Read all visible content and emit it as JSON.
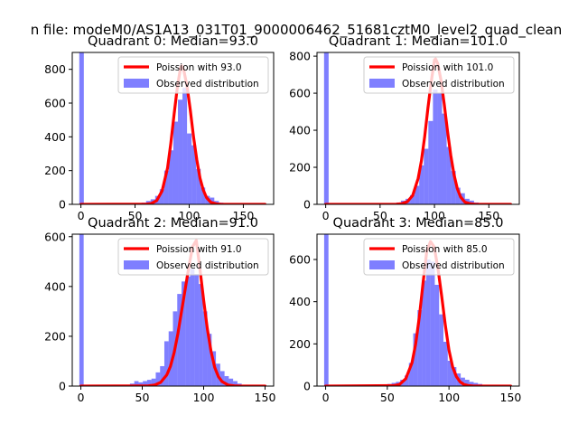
{
  "figure": {
    "suptitle": "n file: modeM0/AS1A13_031T01_9000006462_51681cztM0_level2_quad_clean"
  },
  "colors": {
    "poisson": "#ff0000",
    "observed": "#0000ff",
    "axis": "#000000",
    "background": "#ffffff"
  },
  "chart_data": [
    {
      "type": "bar",
      "title": "Quadrant 0: Median=93.0",
      "xlim": [
        -8,
        178
      ],
      "ylim": [
        0,
        900
      ],
      "xticks": [
        0,
        50,
        100,
        150
      ],
      "yticks": [
        0,
        200,
        400,
        600,
        800
      ],
      "legend": {
        "placement": "top-right",
        "entries": [
          "Poission with 93.0",
          "Observed distribution"
        ]
      },
      "series": [
        {
          "name": "Poission with 93.0",
          "type": "line",
          "mean": 93.0,
          "x": [
            0,
            60,
            65,
            70,
            75,
            80,
            83,
            86,
            89,
            92,
            93,
            95,
            98,
            101,
            104,
            107,
            110,
            113,
            116,
            120,
            125,
            130,
            135,
            140,
            150,
            170
          ],
          "y": [
            0,
            1,
            5,
            22,
            80,
            215,
            360,
            530,
            690,
            810,
            820,
            795,
            700,
            560,
            400,
            265,
            155,
            85,
            40,
            12,
            3,
            0,
            0,
            0,
            0,
            0
          ]
        },
        {
          "name": "Observed distribution",
          "type": "histogram",
          "bin_width": 4.2,
          "bins": [
            {
              "x0": -1.5,
              "count": 900
            },
            {
              "x0": 56,
              "count": 10
            },
            {
              "x0": 60.2,
              "count": 20
            },
            {
              "x0": 64.4,
              "count": 30
            },
            {
              "x0": 68.6,
              "count": 50
            },
            {
              "x0": 72.8,
              "count": 90
            },
            {
              "x0": 77,
              "count": 200
            },
            {
              "x0": 81.2,
              "count": 320
            },
            {
              "x0": 85.4,
              "count": 490
            },
            {
              "x0": 89.6,
              "count": 620
            },
            {
              "x0": 93.8,
              "count": 690
            },
            {
              "x0": 98,
              "count": 420
            },
            {
              "x0": 102.2,
              "count": 350
            },
            {
              "x0": 106.4,
              "count": 210
            },
            {
              "x0": 110.6,
              "count": 100
            },
            {
              "x0": 114.8,
              "count": 50
            },
            {
              "x0": 119,
              "count": 40
            },
            {
              "x0": 123.2,
              "count": 20
            },
            {
              "x0": 127.4,
              "count": 10
            }
          ]
        }
      ]
    },
    {
      "type": "bar",
      "title": "Quadrant 1: Median=101.0",
      "xlim": [
        -8,
        178
      ],
      "ylim": [
        0,
        820
      ],
      "xticks": [
        0,
        50,
        100,
        150
      ],
      "yticks": [
        0,
        200,
        400,
        600,
        800
      ],
      "legend": {
        "placement": "top-right",
        "entries": [
          "Poission with 101.0",
          "Observed distribution"
        ]
      },
      "series": [
        {
          "name": "Poission with 101.0",
          "type": "line",
          "mean": 101.0,
          "x": [
            0,
            65,
            70,
            75,
            80,
            85,
            88,
            91,
            94,
            97,
            100,
            101,
            103,
            106,
            109,
            112,
            115,
            118,
            121,
            124,
            128,
            133,
            138,
            145,
            155,
            170
          ],
          "y": [
            0,
            1,
            4,
            14,
            48,
            140,
            235,
            365,
            520,
            660,
            780,
            785,
            760,
            670,
            540,
            395,
            265,
            160,
            85,
            40,
            12,
            3,
            0,
            0,
            0,
            0
          ]
        },
        {
          "name": "Observed distribution",
          "type": "histogram",
          "bin_width": 4.2,
          "bins": [
            {
              "x0": -1.5,
              "count": 820
            },
            {
              "x0": 65,
              "count": 10
            },
            {
              "x0": 69.2,
              "count": 20
            },
            {
              "x0": 73.4,
              "count": 30
            },
            {
              "x0": 77.6,
              "count": 50
            },
            {
              "x0": 81.8,
              "count": 100
            },
            {
              "x0": 86,
              "count": 210
            },
            {
              "x0": 90.2,
              "count": 300
            },
            {
              "x0": 94.4,
              "count": 450
            },
            {
              "x0": 98.6,
              "count": 620
            },
            {
              "x0": 102.8,
              "count": 600
            },
            {
              "x0": 107,
              "count": 490
            },
            {
              "x0": 111.2,
              "count": 310
            },
            {
              "x0": 115.4,
              "count": 180
            },
            {
              "x0": 119.6,
              "count": 90
            },
            {
              "x0": 123.8,
              "count": 60
            },
            {
              "x0": 128,
              "count": 30
            },
            {
              "x0": 132.2,
              "count": 20
            },
            {
              "x0": 136.4,
              "count": 10
            }
          ]
        }
      ]
    },
    {
      "type": "bar",
      "title": "Quadrant 2: Median=91.0",
      "xlim": [
        -7,
        157
      ],
      "ylim": [
        0,
        610
      ],
      "xticks": [
        0,
        50,
        100,
        150
      ],
      "yticks": [
        0,
        200,
        400,
        600
      ],
      "legend": {
        "placement": "top-right",
        "entries": [
          "Poission with 91.0",
          "Observed distribution"
        ]
      },
      "series": [
        {
          "name": "Poission with 91.0",
          "type": "line",
          "mean": 91.0,
          "x": [
            0,
            55,
            60,
            65,
            70,
            73,
            76,
            79,
            82,
            85,
            88,
            91,
            94,
            97,
            100,
            103,
            106,
            109,
            112,
            115,
            120,
            125,
            130,
            140,
            150
          ],
          "y": [
            0,
            1,
            4,
            15,
            45,
            80,
            135,
            210,
            300,
            390,
            480,
            560,
            585,
            470,
            345,
            230,
            140,
            75,
            38,
            18,
            4,
            1,
            0,
            0,
            0
          ]
        },
        {
          "name": "Observed distribution",
          "type": "histogram",
          "bin_width": 3.5,
          "bins": [
            {
              "x0": -1.2,
              "count": 610
            },
            {
              "x0": 40,
              "count": 10
            },
            {
              "x0": 43.5,
              "count": 20
            },
            {
              "x0": 47,
              "count": 15
            },
            {
              "x0": 50.5,
              "count": 20
            },
            {
              "x0": 54,
              "count": 25
            },
            {
              "x0": 57.5,
              "count": 30
            },
            {
              "x0": 61,
              "count": 55
            },
            {
              "x0": 64.5,
              "count": 80
            },
            {
              "x0": 68,
              "count": 180
            },
            {
              "x0": 71.5,
              "count": 220
            },
            {
              "x0": 75,
              "count": 300
            },
            {
              "x0": 78.5,
              "count": 370
            },
            {
              "x0": 82,
              "count": 420
            },
            {
              "x0": 85.5,
              "count": 440
            },
            {
              "x0": 89,
              "count": 470
            },
            {
              "x0": 92.5,
              "count": 450
            },
            {
              "x0": 96,
              "count": 410
            },
            {
              "x0": 99.5,
              "count": 300
            },
            {
              "x0": 103,
              "count": 210
            },
            {
              "x0": 106.5,
              "count": 140
            },
            {
              "x0": 110,
              "count": 90
            },
            {
              "x0": 113.5,
              "count": 60
            },
            {
              "x0": 117,
              "count": 40
            },
            {
              "x0": 120.5,
              "count": 30
            },
            {
              "x0": 124,
              "count": 20
            },
            {
              "x0": 127.5,
              "count": 10
            }
          ]
        }
      ]
    },
    {
      "type": "bar",
      "title": "Quadrant 3: Median=85.0",
      "xlim": [
        -7,
        157
      ],
      "ylim": [
        0,
        720
      ],
      "xticks": [
        0,
        50,
        100,
        150
      ],
      "yticks": [
        0,
        200,
        400,
        600
      ],
      "legend": {
        "placement": "top-right",
        "entries": [
          "Poission with 85.0",
          "Observed distribution"
        ]
      },
      "series": [
        {
          "name": "Poission with 85.0",
          "type": "line",
          "mean": 85.0,
          "x": [
            0,
            55,
            60,
            65,
            70,
            73,
            76,
            79,
            82,
            85,
            88,
            91,
            94,
            97,
            100,
            103,
            106,
            109,
            112,
            116,
            120,
            130,
            140,
            150
          ],
          "y": [
            0,
            2,
            8,
            35,
            110,
            200,
            330,
            490,
            640,
            685,
            660,
            560,
            430,
            290,
            170,
            90,
            45,
            20,
            8,
            2,
            0,
            0,
            0,
            0
          ]
        },
        {
          "name": "Observed distribution",
          "type": "histogram",
          "bin_width": 3.5,
          "bins": [
            {
              "x0": -1.2,
              "count": 720
            },
            {
              "x0": 50,
              "count": 10
            },
            {
              "x0": 53.5,
              "count": 15
            },
            {
              "x0": 57,
              "count": 20
            },
            {
              "x0": 60.5,
              "count": 30
            },
            {
              "x0": 64,
              "count": 50
            },
            {
              "x0": 67.5,
              "count": 110
            },
            {
              "x0": 71,
              "count": 250
            },
            {
              "x0": 74.5,
              "count": 360
            },
            {
              "x0": 78,
              "count": 500
            },
            {
              "x0": 81.5,
              "count": 600
            },
            {
              "x0": 85,
              "count": 590
            },
            {
              "x0": 88.5,
              "count": 480
            },
            {
              "x0": 92,
              "count": 340
            },
            {
              "x0": 95.5,
              "count": 210
            },
            {
              "x0": 99,
              "count": 120
            },
            {
              "x0": 102.5,
              "count": 90
            },
            {
              "x0": 106,
              "count": 60
            },
            {
              "x0": 109.5,
              "count": 40
            },
            {
              "x0": 113,
              "count": 30
            },
            {
              "x0": 116.5,
              "count": 20
            },
            {
              "x0": 120,
              "count": 15
            },
            {
              "x0": 123.5,
              "count": 10
            }
          ]
        }
      ]
    }
  ]
}
